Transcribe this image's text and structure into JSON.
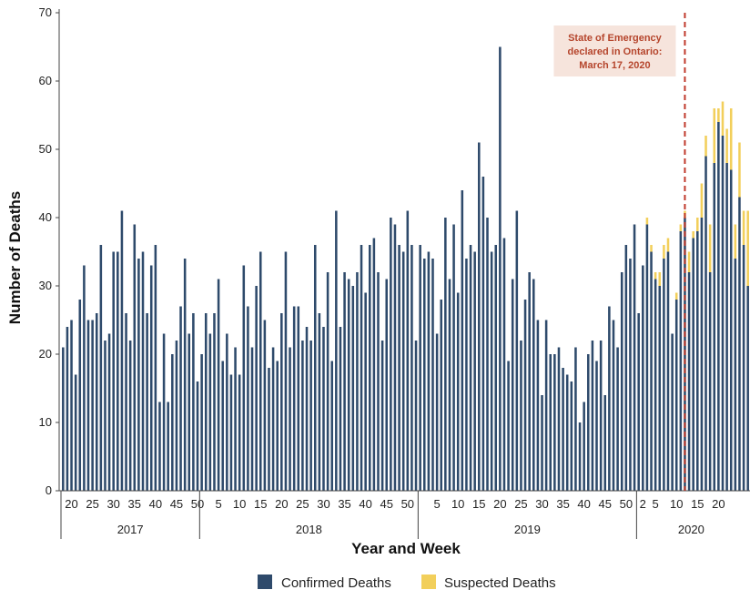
{
  "chart_data": {
    "type": "bar",
    "xlabel": "Year and Week",
    "ylabel": "Number of Deaths",
    "ylim": [
      0,
      70
    ],
    "yticks": [
      0,
      10,
      20,
      30,
      40,
      50,
      60,
      70
    ],
    "grid": false,
    "legend_position": "bottom",
    "stacked": true,
    "series": [
      {
        "name": "Confirmed Deaths",
        "color": "#2e4a6b",
        "values": [
          21,
          24,
          25,
          17,
          28,
          33,
          25,
          25,
          26,
          36,
          22,
          23,
          35,
          35,
          41,
          26,
          22,
          39,
          34,
          35,
          26,
          33,
          36,
          13,
          23,
          13,
          20,
          22,
          27,
          34,
          23,
          26,
          16,
          20,
          26,
          23,
          26,
          31,
          19,
          23,
          17,
          21,
          17,
          33,
          27,
          21,
          30,
          35,
          25,
          18,
          21,
          19,
          26,
          35,
          21,
          27,
          27,
          22,
          24,
          22,
          36,
          26,
          24,
          32,
          19,
          41,
          24,
          32,
          31,
          30,
          32,
          36,
          29,
          36,
          37,
          32,
          22,
          31,
          40,
          39,
          36,
          35,
          41,
          36,
          22,
          36,
          34,
          35,
          34,
          23,
          28,
          40,
          31,
          39,
          29,
          44,
          34,
          36,
          35,
          51,
          46,
          40,
          35,
          36,
          65,
          37,
          19,
          31,
          41,
          22,
          28,
          32,
          31,
          25,
          14,
          25,
          20,
          20,
          21,
          18,
          17,
          16,
          21,
          10,
          13,
          20,
          22,
          19,
          22,
          14,
          27,
          25,
          21,
          32,
          36,
          34,
          39,
          26,
          33,
          39,
          35,
          31,
          30,
          34,
          35,
          23,
          28,
          38,
          40,
          32,
          37,
          38,
          40,
          49,
          32,
          48,
          54,
          52,
          48,
          47,
          34,
          43,
          36,
          30
        ]
      },
      {
        "name": "Suspected Deaths",
        "color": "#f2cf5b",
        "values": [
          0,
          0,
          0,
          0,
          0,
          0,
          0,
          0,
          0,
          0,
          0,
          0,
          0,
          0,
          0,
          0,
          0,
          0,
          0,
          0,
          0,
          0,
          0,
          0,
          0,
          0,
          0,
          0,
          0,
          0,
          0,
          0,
          0,
          0,
          0,
          0,
          0,
          0,
          0,
          0,
          0,
          0,
          0,
          0,
          0,
          0,
          0,
          0,
          0,
          0,
          0,
          0,
          0,
          0,
          0,
          0,
          0,
          0,
          0,
          0,
          0,
          0,
          0,
          0,
          0,
          0,
          0,
          0,
          0,
          0,
          0,
          0,
          0,
          0,
          0,
          0,
          0,
          0,
          0,
          0,
          0,
          0,
          0,
          0,
          0,
          0,
          0,
          0,
          0,
          0,
          0,
          0,
          0,
          0,
          0,
          0,
          0,
          0,
          0,
          0,
          0,
          0,
          0,
          0,
          0,
          0,
          0,
          0,
          0,
          0,
          0,
          0,
          0,
          0,
          0,
          0,
          0,
          0,
          0,
          0,
          0,
          0,
          0,
          0,
          0,
          0,
          0,
          0,
          0,
          0,
          0,
          0,
          0,
          0,
          0,
          0,
          0,
          0,
          0,
          1,
          1,
          1,
          2,
          2,
          2,
          0,
          1,
          1,
          1,
          3,
          1,
          2,
          5,
          3,
          7,
          8,
          2,
          5,
          5,
          9,
          5,
          8,
          5,
          11
        ]
      }
    ],
    "groups": [
      {
        "label": "2017",
        "start_week": 18,
        "end_week": 50,
        "tick_labels": [
          "20",
          "25",
          "30",
          "35",
          "40",
          "45",
          "50"
        ]
      },
      {
        "label": "2018",
        "start_week": 1,
        "end_week": 52,
        "tick_labels": [
          "5",
          "10",
          "15",
          "20",
          "25",
          "30",
          "35",
          "40",
          "45",
          "50"
        ]
      },
      {
        "label": "2019",
        "start_week": 1,
        "end_week": 52,
        "tick_labels": [
          "5",
          "10",
          "15",
          "20",
          "25",
          "30",
          "35",
          "40",
          "45",
          "50"
        ]
      },
      {
        "label": "2020",
        "start_week": 1,
        "end_week": 26,
        "tick_labels": [
          "5",
          "10",
          "15",
          "20",
          "2"
        ]
      }
    ],
    "annotations": [
      {
        "text_lines": [
          "State of Emergency",
          "declared in Ontario:",
          "March 17, 2020"
        ],
        "year": "2020",
        "week": 12,
        "line_color": "#c0392b",
        "box_color": "#f6e4dc"
      }
    ]
  }
}
